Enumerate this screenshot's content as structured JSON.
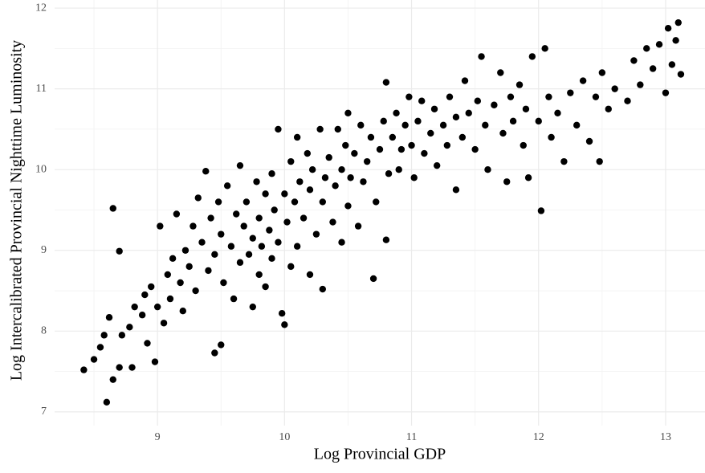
{
  "chart_data": {
    "type": "scatter",
    "x_label": "Log Provincial GDP",
    "y_label": "Log Intercalibrated Provincial Nighttime Luminosity",
    "xlim": [
      8.19,
      13.31
    ],
    "ylim": [
      6.83,
      12.1
    ],
    "xticks": [
      9,
      10,
      11,
      12,
      13
    ],
    "yticks": [
      7,
      8,
      9,
      10,
      11,
      12
    ],
    "x_minor_ticks": [
      8.5,
      9.5,
      10.5,
      11.5,
      12.5
    ],
    "y_minor_ticks": [
      7.5,
      8.5,
      9.5,
      10.5,
      11.5
    ],
    "grid": true,
    "color": "#000000",
    "x": [
      8.42,
      8.5,
      8.55,
      8.58,
      8.6,
      8.62,
      8.65,
      8.65,
      8.7,
      8.7,
      8.72,
      8.78,
      8.8,
      8.82,
      8.88,
      8.9,
      8.92,
      8.95,
      8.98,
      9.0,
      9.02,
      9.05,
      9.08,
      9.1,
      9.12,
      9.15,
      9.18,
      9.2,
      9.22,
      9.25,
      9.28,
      9.3,
      9.32,
      9.35,
      9.38,
      9.4,
      9.42,
      9.45,
      9.45,
      9.48,
      9.5,
      9.5,
      9.52,
      9.55,
      9.58,
      9.6,
      9.62,
      9.65,
      9.65,
      9.68,
      9.7,
      9.72,
      9.75,
      9.75,
      9.78,
      9.8,
      9.8,
      9.82,
      9.85,
      9.85,
      9.88,
      9.9,
      9.9,
      9.92,
      9.95,
      9.95,
      9.98,
      10.0,
      10.0,
      10.02,
      10.05,
      10.05,
      10.08,
      10.1,
      10.1,
      10.12,
      10.15,
      10.18,
      10.2,
      10.2,
      10.22,
      10.25,
      10.28,
      10.3,
      10.3,
      10.32,
      10.35,
      10.38,
      10.4,
      10.42,
      10.45,
      10.45,
      10.48,
      10.5,
      10.5,
      10.52,
      10.55,
      10.58,
      10.6,
      10.62,
      10.65,
      10.68,
      10.7,
      10.72,
      10.75,
      10.78,
      10.8,
      10.8,
      10.82,
      10.85,
      10.88,
      10.9,
      10.92,
      10.95,
      10.98,
      11.0,
      11.02,
      11.05,
      11.08,
      11.1,
      11.15,
      11.18,
      11.2,
      11.25,
      11.28,
      11.3,
      11.35,
      11.35,
      11.4,
      11.42,
      11.45,
      11.5,
      11.52,
      11.55,
      11.58,
      11.6,
      11.65,
      11.7,
      11.72,
      11.75,
      11.78,
      11.8,
      11.85,
      11.88,
      11.9,
      11.92,
      11.95,
      12.0,
      12.02,
      12.05,
      12.08,
      12.1,
      12.15,
      12.2,
      12.25,
      12.3,
      12.35,
      12.4,
      12.45,
      12.48,
      12.5,
      12.55,
      12.6,
      12.7,
      12.75,
      12.8,
      12.85,
      12.9,
      12.95,
      13.0,
      13.02,
      13.05,
      13.08,
      13.1,
      13.12
    ],
    "y": [
      7.52,
      7.65,
      7.8,
      7.95,
      7.12,
      8.17,
      9.52,
      7.4,
      7.55,
      8.99,
      7.95,
      8.05,
      7.55,
      8.3,
      8.2,
      8.45,
      7.85,
      8.55,
      7.62,
      8.3,
      9.3,
      8.1,
      8.7,
      8.4,
      8.9,
      9.45,
      8.6,
      8.25,
      9.0,
      8.8,
      9.3,
      8.5,
      9.65,
      9.1,
      9.98,
      8.75,
      9.4,
      7.73,
      8.95,
      9.6,
      7.83,
      9.2,
      8.6,
      9.8,
      9.05,
      8.4,
      9.45,
      10.05,
      8.85,
      9.3,
      9.6,
      8.95,
      9.15,
      8.3,
      9.85,
      9.4,
      8.7,
      9.05,
      9.7,
      8.55,
      9.25,
      9.95,
      8.9,
      9.5,
      10.5,
      9.1,
      8.22,
      9.7,
      8.08,
      9.35,
      10.1,
      8.8,
      9.6,
      10.4,
      9.05,
      9.85,
      9.4,
      10.2,
      8.7,
      9.75,
      10.0,
      9.2,
      10.5,
      9.6,
      8.52,
      9.9,
      10.15,
      9.35,
      9.8,
      10.5,
      9.1,
      10.0,
      10.3,
      9.55,
      10.7,
      9.9,
      10.2,
      9.3,
      10.55,
      9.85,
      10.1,
      10.4,
      8.65,
      9.6,
      10.25,
      10.6,
      9.13,
      11.08,
      9.95,
      10.4,
      10.7,
      10.0,
      10.25,
      10.55,
      10.9,
      10.3,
      9.9,
      10.6,
      10.85,
      10.2,
      10.45,
      10.75,
      10.05,
      10.55,
      10.3,
      10.9,
      9.75,
      10.65,
      10.4,
      11.1,
      10.7,
      10.25,
      10.85,
      11.4,
      10.55,
      10.0,
      10.8,
      11.2,
      10.45,
      9.85,
      10.9,
      10.6,
      11.05,
      10.3,
      10.75,
      9.9,
      11.4,
      10.6,
      9.49,
      11.5,
      10.9,
      10.4,
      10.7,
      10.1,
      10.95,
      10.55,
      11.1,
      10.35,
      10.9,
      10.1,
      11.2,
      10.75,
      11.0,
      10.85,
      11.35,
      11.05,
      11.5,
      11.25,
      11.55,
      10.95,
      11.75,
      11.3,
      11.6,
      11.82,
      11.18
    ]
  }
}
